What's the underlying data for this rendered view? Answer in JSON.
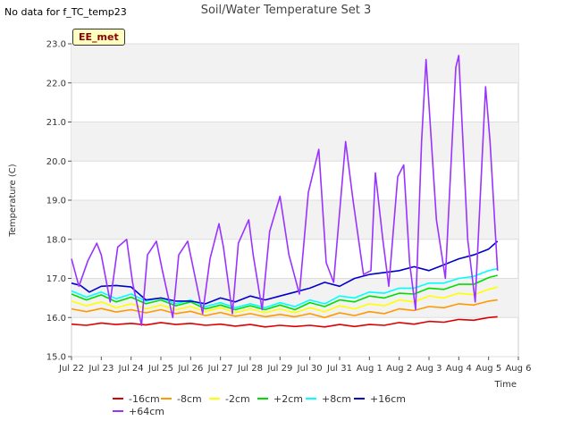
{
  "page": {
    "no_data_text": "No data for f_TC_temp23",
    "badge_text": "EE_met"
  },
  "chart_data": {
    "type": "line",
    "title": "Soil/Water Temperature Set 3",
    "xlabel": "Time",
    "ylabel": "Temperature (C)",
    "xlim": [
      0,
      15
    ],
    "ylim": [
      15.0,
      23.0
    ],
    "x_ticks": [
      {
        "v": 0,
        "label": "Jul 22"
      },
      {
        "v": 1,
        "label": "Jul 23"
      },
      {
        "v": 2,
        "label": "Jul 24"
      },
      {
        "v": 3,
        "label": "Jul 25"
      },
      {
        "v": 4,
        "label": "Jul 26"
      },
      {
        "v": 5,
        "label": "Jul 27"
      },
      {
        "v": 6,
        "label": "Jul 28"
      },
      {
        "v": 7,
        "label": "Jul 29"
      },
      {
        "v": 8,
        "label": "Jul 30"
      },
      {
        "v": 9,
        "label": "Jul 31"
      },
      {
        "v": 10,
        "label": "Aug 1"
      },
      {
        "v": 11,
        "label": "Aug 2"
      },
      {
        "v": 12,
        "label": "Aug 3"
      },
      {
        "v": 13,
        "label": "Aug 4"
      },
      {
        "v": 14,
        "label": "Aug 5"
      },
      {
        "v": 15,
        "label": "Aug 6"
      }
    ],
    "y_ticks": [
      {
        "v": 15,
        "label": "15.0"
      },
      {
        "v": 16,
        "label": "16.0"
      },
      {
        "v": 17,
        "label": "17.0"
      },
      {
        "v": 18,
        "label": "18.0"
      },
      {
        "v": 19,
        "label": "19.0"
      },
      {
        "v": 20,
        "label": "20.0"
      },
      {
        "v": 21,
        "label": "21.0"
      },
      {
        "v": 22,
        "label": "22.0"
      },
      {
        "v": 23,
        "label": "23.0"
      }
    ],
    "grid": true,
    "legend_position": "bottom",
    "series": [
      {
        "name": "-16cm",
        "color": "#dd0000",
        "x": [
          0,
          0.5,
          1,
          1.5,
          2,
          2.5,
          3,
          3.5,
          4,
          4.5,
          5,
          5.5,
          6,
          6.5,
          7,
          7.5,
          8,
          8.5,
          9,
          9.5,
          10,
          10.5,
          11,
          11.5,
          12,
          12.5,
          13,
          13.5,
          14,
          14.3
        ],
        "y": [
          15.83,
          15.8,
          15.86,
          15.82,
          15.85,
          15.81,
          15.87,
          15.82,
          15.85,
          15.8,
          15.83,
          15.78,
          15.82,
          15.76,
          15.8,
          15.77,
          15.8,
          15.76,
          15.82,
          15.77,
          15.82,
          15.8,
          15.87,
          15.83,
          15.9,
          15.88,
          15.95,
          15.93,
          16.0,
          16.02
        ]
      },
      {
        "name": "-8cm",
        "color": "#ff9900",
        "x": [
          0,
          0.5,
          1,
          1.5,
          2,
          2.5,
          3,
          3.5,
          4,
          4.5,
          5,
          5.5,
          6,
          6.5,
          7,
          7.5,
          8,
          8.5,
          9,
          9.5,
          10,
          10.5,
          11,
          11.5,
          12,
          12.5,
          13,
          13.5,
          14,
          14.3
        ],
        "y": [
          16.22,
          16.15,
          16.23,
          16.14,
          16.2,
          16.12,
          16.2,
          16.1,
          16.16,
          16.05,
          16.13,
          16.03,
          16.1,
          16.02,
          16.08,
          16.02,
          16.1,
          16.0,
          16.12,
          16.05,
          16.15,
          16.1,
          16.22,
          16.18,
          16.28,
          16.25,
          16.35,
          16.32,
          16.42,
          16.45
        ]
      },
      {
        "name": "-2cm",
        "color": "#ffff00",
        "x": [
          0,
          0.5,
          1,
          1.5,
          2,
          2.5,
          3,
          3.5,
          4,
          4.5,
          5,
          5.5,
          6,
          6.5,
          7,
          7.5,
          8,
          8.5,
          9,
          9.5,
          10,
          10.5,
          11,
          11.5,
          12,
          12.5,
          13,
          13.5,
          14,
          14.3
        ],
        "y": [
          16.42,
          16.3,
          16.4,
          16.25,
          16.35,
          16.22,
          16.32,
          16.2,
          16.28,
          16.15,
          16.25,
          16.12,
          16.22,
          16.12,
          16.22,
          16.12,
          16.25,
          16.15,
          16.3,
          16.22,
          16.35,
          16.3,
          16.45,
          16.4,
          16.55,
          16.5,
          16.62,
          16.58,
          16.72,
          16.78
        ]
      },
      {
        "name": "+2cm",
        "color": "#00dd00",
        "x": [
          0,
          0.5,
          1,
          1.5,
          2,
          2.5,
          3,
          3.5,
          4,
          4.5,
          5,
          5.5,
          6,
          6.5,
          7,
          7.5,
          8,
          8.5,
          9,
          9.5,
          10,
          10.5,
          11,
          11.5,
          12,
          12.5,
          13,
          13.5,
          14,
          14.3
        ],
        "y": [
          16.6,
          16.45,
          16.58,
          16.4,
          16.52,
          16.35,
          16.45,
          16.3,
          16.4,
          16.22,
          16.32,
          16.2,
          16.3,
          16.2,
          16.32,
          16.2,
          16.38,
          16.28,
          16.45,
          16.4,
          16.55,
          16.5,
          16.62,
          16.6,
          16.75,
          16.72,
          16.85,
          16.85,
          17.02,
          17.08
        ]
      },
      {
        "name": "+8cm",
        "color": "#00ffff",
        "x": [
          0,
          0.5,
          1,
          1.5,
          2,
          2.5,
          3,
          3.5,
          4,
          4.5,
          5,
          5.5,
          6,
          6.5,
          7,
          7.5,
          8,
          8.5,
          9,
          9.5,
          10,
          10.5,
          11,
          11.5,
          12,
          12.5,
          13,
          13.5,
          14,
          14.3
        ],
        "y": [
          16.68,
          16.52,
          16.65,
          16.48,
          16.6,
          16.42,
          16.5,
          16.35,
          16.45,
          16.28,
          16.38,
          16.25,
          16.35,
          16.25,
          16.38,
          16.28,
          16.45,
          16.35,
          16.55,
          16.5,
          16.65,
          16.62,
          16.75,
          16.75,
          16.88,
          16.88,
          17.0,
          17.05,
          17.2,
          17.25
        ]
      },
      {
        "name": "+16cm",
        "color": "#0000cc",
        "x": [
          0,
          0.3,
          0.6,
          1,
          1.5,
          2,
          2.5,
          3,
          3.5,
          4,
          4.5,
          5,
          5.5,
          6,
          6.5,
          7,
          7.5,
          8,
          8.5,
          9,
          9.5,
          10,
          10.5,
          11,
          11.5,
          12,
          12.5,
          13,
          13.5,
          14,
          14.3
        ],
        "y": [
          16.88,
          16.82,
          16.65,
          16.8,
          16.82,
          16.78,
          16.45,
          16.5,
          16.42,
          16.42,
          16.35,
          16.5,
          16.4,
          16.55,
          16.45,
          16.55,
          16.65,
          16.75,
          16.9,
          16.8,
          17.0,
          17.1,
          17.15,
          17.2,
          17.3,
          17.2,
          17.35,
          17.5,
          17.6,
          17.75,
          17.95
        ]
      },
      {
        "name": "+64cm",
        "color": "#9933ff",
        "x": [
          0,
          0.25,
          0.55,
          0.85,
          1.0,
          1.3,
          1.55,
          1.85,
          2.05,
          2.35,
          2.55,
          2.85,
          3.05,
          3.4,
          3.6,
          3.9,
          4.05,
          4.4,
          4.65,
          4.95,
          5.1,
          5.4,
          5.6,
          5.95,
          6.1,
          6.4,
          6.65,
          7.0,
          7.3,
          7.65,
          7.95,
          8.3,
          8.55,
          8.8,
          9.2,
          9.45,
          9.8,
          10.05,
          10.2,
          10.45,
          10.65,
          10.95,
          11.15,
          11.35,
          11.55,
          11.75,
          11.9,
          12.25,
          12.55,
          12.9,
          13.0,
          13.3,
          13.55,
          13.9,
          14.05,
          14.3
        ],
        "y": [
          17.5,
          16.8,
          17.45,
          17.9,
          17.6,
          16.4,
          17.8,
          18.0,
          16.9,
          15.8,
          17.6,
          17.95,
          17.2,
          16.0,
          17.6,
          17.95,
          17.4,
          16.1,
          17.5,
          18.4,
          17.8,
          16.1,
          17.9,
          18.5,
          17.6,
          16.2,
          18.2,
          19.1,
          17.6,
          16.6,
          19.2,
          20.3,
          17.4,
          16.9,
          20.5,
          19.0,
          17.1,
          17.2,
          19.7,
          18.0,
          16.8,
          19.6,
          19.9,
          17.4,
          16.2,
          20.5,
          22.6,
          18.5,
          17.0,
          22.4,
          22.7,
          18.0,
          16.4,
          21.9,
          20.5,
          17.2
        ]
      }
    ]
  }
}
